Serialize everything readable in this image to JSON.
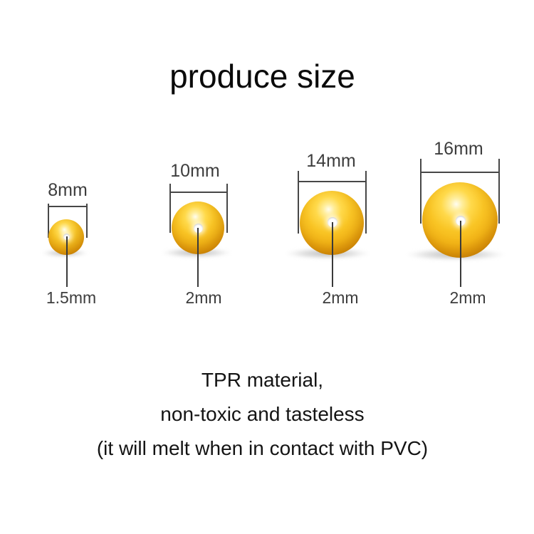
{
  "title": "produce size",
  "balls": [
    {
      "name": "8mm-bead",
      "diameter_label": "8mm",
      "diameter_mm": 8,
      "hole_label": "1.5mm",
      "hole_mm": 1.5
    },
    {
      "name": "10mm-bead",
      "diameter_label": "10mm",
      "diameter_mm": 10,
      "hole_label": "2mm",
      "hole_mm": 2
    },
    {
      "name": "14mm-bead",
      "diameter_label": "14mm",
      "diameter_mm": 14,
      "hole_label": "2mm",
      "hole_mm": 2
    },
    {
      "name": "16mm-bead",
      "diameter_label": "16mm",
      "diameter_mm": 16,
      "hole_label": "2mm",
      "hole_mm": 2
    }
  ],
  "description": {
    "line1": "TPR material,",
    "line2": "non-toxic and tasteless",
    "line3": "(it will melt when in contact with PVC)"
  },
  "colors": {
    "background": "#FFFFFF",
    "bead_highlight": "#FFEE9D",
    "bead_main": "#F9C525",
    "bead_edge": "#A96B01",
    "hole": "#FFFFFF",
    "measure_line": "#474747",
    "measure_text": "#3D3D3D",
    "body_text": "#141414"
  }
}
